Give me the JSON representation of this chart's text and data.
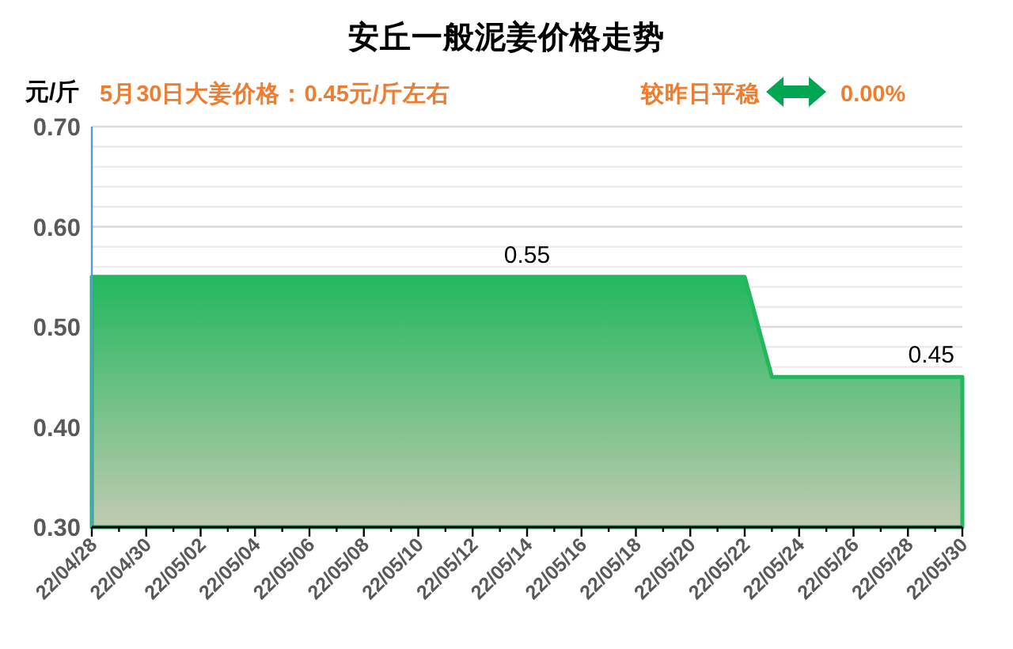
{
  "chart_data": {
    "type": "area",
    "title": "安丘一般泥姜价格走势",
    "subtitle": "5月30日大姜价格：0.45元/斤左右",
    "ylabel": "元/斤",
    "annotations": [
      "较昨日平稳",
      "0.00%"
    ],
    "x": [
      "--04-28",
      "--04-29",
      "--04-30",
      "--05-01",
      "--05-02",
      "--05-03",
      "--05-04",
      "--05-05",
      "--05-06",
      "--05-07",
      "--05-08",
      "--05-09",
      "--05-10",
      "--05-11",
      "--05-12",
      "--05-13",
      "--05-14",
      "--05-15",
      "--05-16",
      "--05-17",
      "--05-18",
      "--05-19",
      "--05-20",
      "--05-21",
      "--05-22",
      "--05-23",
      "--05-24",
      "--05-25",
      "--05-26",
      "--05-27",
      "--05-28",
      "--05-29",
      "--05-30"
    ],
    "values": [
      0.55,
      0.55,
      0.55,
      0.55,
      0.55,
      0.55,
      0.55,
      0.55,
      0.55,
      0.55,
      0.55,
      0.55,
      0.55,
      0.55,
      0.55,
      0.55,
      0.55,
      0.55,
      0.55,
      0.55,
      0.55,
      0.55,
      0.55,
      0.55,
      0.55,
      0.45,
      0.45,
      0.45,
      0.45,
      0.45,
      0.45,
      0.45,
      0.45
    ],
    "value_labels": [
      null,
      null,
      null,
      null,
      null,
      null,
      null,
      null,
      null,
      null,
      null,
      null,
      null,
      null,
      null,
      null,
      "0.55",
      null,
      null,
      null,
      null,
      null,
      null,
      null,
      null,
      null,
      null,
      null,
      null,
      null,
      null,
      null,
      "0.45"
    ],
    "color": "#22b85e",
    "xlim": [
      "--04-28",
      "--05-30"
    ],
    "xticks": [
      {
        "value": "--04-28",
        "label": "22/04/28"
      },
      {
        "value": "--04-29",
        "label": null
      },
      {
        "value": "--04-30",
        "label": "22/04/30"
      },
      {
        "value": "--05-01",
        "label": null
      },
      {
        "value": "--05-02",
        "label": "22/05/02"
      },
      {
        "value": "--05-03",
        "label": null
      },
      {
        "value": "--05-04",
        "label": "22/05/04"
      },
      {
        "value": "--05-05",
        "label": null
      },
      {
        "value": "--05-06",
        "label": "22/05/06"
      },
      {
        "value": "--05-07",
        "label": null
      },
      {
        "value": "--05-08",
        "label": "22/05/08"
      },
      {
        "value": "--05-09",
        "label": null
      },
      {
        "value": "--05-10",
        "label": "22/05/10"
      },
      {
        "value": "--05-11",
        "label": null
      },
      {
        "value": "--05-12",
        "label": "22/05/12"
      },
      {
        "value": "--05-13",
        "label": null
      },
      {
        "value": "--05-14",
        "label": "22/05/14"
      },
      {
        "value": "--05-15",
        "label": null
      },
      {
        "value": "--05-16",
        "label": "22/05/16"
      },
      {
        "value": "--05-17",
        "label": null
      },
      {
        "value": "--05-18",
        "label": "22/05/18"
      },
      {
        "value": "--05-19",
        "label": null
      },
      {
        "value": "--05-20",
        "label": "22/05/20"
      },
      {
        "value": "--05-21",
        "label": null
      },
      {
        "value": "--05-22",
        "label": "22/05/22"
      },
      {
        "value": "--05-23",
        "label": null
      },
      {
        "value": "--05-24",
        "label": "22/05/24"
      },
      {
        "value": "--05-25",
        "label": null
      },
      {
        "value": "--05-26",
        "label": "22/05/26"
      },
      {
        "value": "--05-27",
        "label": null
      },
      {
        "value": "--05-28",
        "label": "22/05/28"
      },
      {
        "value": "--05-29",
        "label": null
      },
      {
        "value": "--05-30",
        "label": "22/05/30"
      }
    ],
    "ylim": [
      0.3,
      0.7
    ],
    "yticks": [
      {
        "value": 0.3,
        "label": "0.30"
      },
      {
        "value": 0.4,
        "label": "0.40"
      },
      {
        "value": 0.46,
        "label": null
      },
      {
        "value": 0.48,
        "label": null
      },
      {
        "value": 0.5,
        "label": "0.50"
      },
      {
        "value": 0.52,
        "label": null
      },
      {
        "value": 0.54,
        "label": null
      },
      {
        "value": 0.56,
        "label": null
      },
      {
        "value": 0.58,
        "label": null
      },
      {
        "value": 0.6,
        "label": "0.60"
      },
      {
        "value": 0.62,
        "label": null
      },
      {
        "value": 0.64,
        "label": null
      },
      {
        "value": 0.66,
        "label": null
      },
      {
        "value": 0.68,
        "label": null
      },
      {
        "value": 0.7,
        "label": "0.70"
      }
    ],
    "grid": "y"
  }
}
